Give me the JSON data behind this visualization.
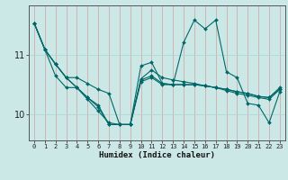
{
  "xlabel": "Humidex (Indice chaleur)",
  "bg_color": "#cce8e6",
  "vgrid_color": "#d4a0a0",
  "hgrid_color": "#a8d4d0",
  "line_color": "#006868",
  "xlim": [
    -0.5,
    23.5
  ],
  "ylim": [
    9.55,
    11.85
  ],
  "yticks": [
    10,
    11
  ],
  "xticks": [
    0,
    1,
    2,
    3,
    4,
    5,
    6,
    7,
    8,
    9,
    10,
    11,
    12,
    13,
    14,
    15,
    16,
    17,
    18,
    19,
    20,
    21,
    22,
    23
  ],
  "lines": [
    [
      11.55,
      11.1,
      10.85,
      10.62,
      10.62,
      10.52,
      10.42,
      10.35,
      9.82,
      9.82,
      10.6,
      10.75,
      10.62,
      10.58,
      10.55,
      10.52,
      10.48,
      10.45,
      10.42,
      10.38,
      10.35,
      10.3,
      10.28,
      10.45
    ],
    [
      11.55,
      11.1,
      10.85,
      10.62,
      10.45,
      10.25,
      10.05,
      9.85,
      9.82,
      9.82,
      10.82,
      10.88,
      10.52,
      10.5,
      11.22,
      11.6,
      11.45,
      11.6,
      10.72,
      10.62,
      10.18,
      10.15,
      9.85,
      10.38
    ],
    [
      11.55,
      11.1,
      10.65,
      10.45,
      10.45,
      10.28,
      10.15,
      9.82,
      9.82,
      9.82,
      10.55,
      10.62,
      10.5,
      10.5,
      10.5,
      10.5,
      10.48,
      10.45,
      10.4,
      10.35,
      10.32,
      10.28,
      10.25,
      10.42
    ],
    [
      11.55,
      11.1,
      10.85,
      10.62,
      10.45,
      10.28,
      10.12,
      9.82,
      9.82,
      9.82,
      10.58,
      10.65,
      10.52,
      10.5,
      10.5,
      10.5,
      10.48,
      10.45,
      10.42,
      10.38,
      10.35,
      10.3,
      10.28,
      10.42
    ]
  ]
}
